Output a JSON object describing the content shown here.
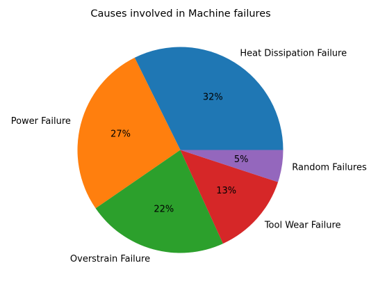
{
  "chart_data": {
    "type": "pie",
    "title": "Causes involved in Machine failures",
    "labels": [
      "Heat Dissipation Failure",
      "Power Failure",
      "Overstrain Failure",
      "Tool Wear Failure",
      "Random Failures"
    ],
    "values": [
      32,
      27,
      22,
      13,
      5
    ],
    "value_labels": [
      "32%",
      "27%",
      "22%",
      "13%",
      "5%"
    ],
    "colors": [
      "#1f77b4",
      "#ff7f0e",
      "#2ca02c",
      "#d62728",
      "#9467bd"
    ],
    "start_angle_deg": 0,
    "direction": "counterclockwise"
  }
}
